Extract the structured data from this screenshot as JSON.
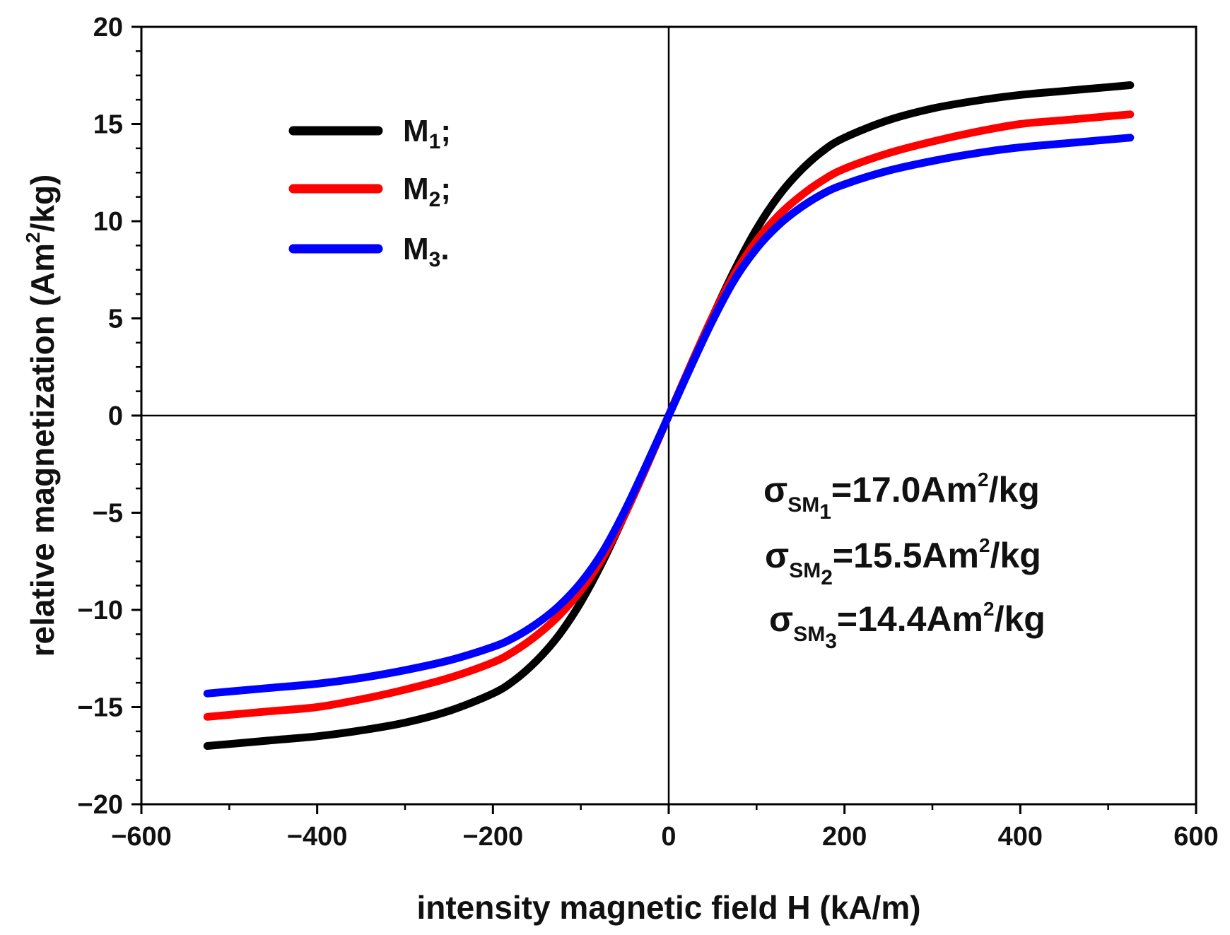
{
  "chart_data": {
    "type": "line",
    "xlabel": "intensity magnetic field H (kA/m)",
    "ylabel": {
      "main": "relative magnetization (Am",
      "sup": "2",
      "tail": "/kg)"
    },
    "xlim": [
      -600,
      600
    ],
    "ylim": [
      -20,
      20
    ],
    "xticks": [
      -600,
      -400,
      -200,
      0,
      200,
      400,
      600
    ],
    "xtick_labels": [
      "−600",
      "−400",
      "−200",
      "0",
      "200",
      "400",
      "600"
    ],
    "yticks": [
      -20,
      -15,
      -10,
      -5,
      0,
      5,
      10,
      15,
      20
    ],
    "ytick_labels": [
      "−20",
      "−15",
      "−10",
      "−5",
      "0",
      "5",
      "10",
      "15",
      "20"
    ],
    "grid": false,
    "legend_position": "top-left",
    "x": [
      -525,
      -500,
      -450,
      -400,
      -350,
      -300,
      -250,
      -200,
      -175,
      -150,
      -125,
      -100,
      -75,
      -50,
      -25,
      0,
      25,
      50,
      75,
      100,
      125,
      150,
      175,
      200,
      250,
      300,
      350,
      400,
      450,
      500,
      525
    ],
    "series": [
      {
        "name": "M1",
        "legend_main": "M",
        "legend_sub": "1",
        "legend_tail": ";",
        "color": "#000000",
        "values": [
          -17.0,
          -16.9,
          -16.7,
          -16.5,
          -16.2,
          -15.8,
          -15.2,
          -14.3,
          -13.6,
          -12.6,
          -11.3,
          -9.6,
          -7.5,
          -5.1,
          -2.6,
          0.0,
          2.6,
          5.1,
          7.5,
          9.6,
          11.3,
          12.6,
          13.6,
          14.3,
          15.2,
          15.8,
          16.2,
          16.5,
          16.7,
          16.9,
          17.0
        ]
      },
      {
        "name": "M2",
        "legend_main": "M",
        "legend_sub": "2",
        "legend_tail": ";",
        "color": "#ff0000",
        "values": [
          -15.5,
          -15.4,
          -15.2,
          -15.0,
          -14.6,
          -14.1,
          -13.5,
          -12.7,
          -12.1,
          -11.3,
          -10.3,
          -9.0,
          -7.3,
          -5.1,
          -2.6,
          0.0,
          2.6,
          5.1,
          7.3,
          9.0,
          10.3,
          11.3,
          12.1,
          12.7,
          13.5,
          14.1,
          14.6,
          15.0,
          15.2,
          15.4,
          15.5
        ]
      },
      {
        "name": "M3",
        "legend_main": "M",
        "legend_sub": "3",
        "legend_tail": ".",
        "color": "#0000ff",
        "values": [
          -14.3,
          -14.2,
          -14.0,
          -13.8,
          -13.5,
          -13.1,
          -12.6,
          -11.9,
          -11.4,
          -10.7,
          -9.8,
          -8.6,
          -7.0,
          -4.9,
          -2.5,
          0.0,
          2.5,
          4.9,
          7.0,
          8.6,
          9.8,
          10.7,
          11.4,
          11.9,
          12.6,
          13.1,
          13.5,
          13.8,
          14.0,
          14.2,
          14.3
        ]
      }
    ],
    "annotations": [
      {
        "sigma": "σ",
        "sub": "SM",
        "subsub": "1",
        "text": "=17.0Am",
        "sup": "2",
        "tail": "/kg"
      },
      {
        "sigma": "σ",
        "sub": "SM",
        "subsub": "2",
        "text": "=15.5Am",
        "sup": "2",
        "tail": "/kg"
      },
      {
        "sigma": "σ",
        "sub": "SM",
        "subsub": "3",
        "text": "=14.4Am",
        "sup": "2",
        "tail": "/kg"
      }
    ]
  }
}
